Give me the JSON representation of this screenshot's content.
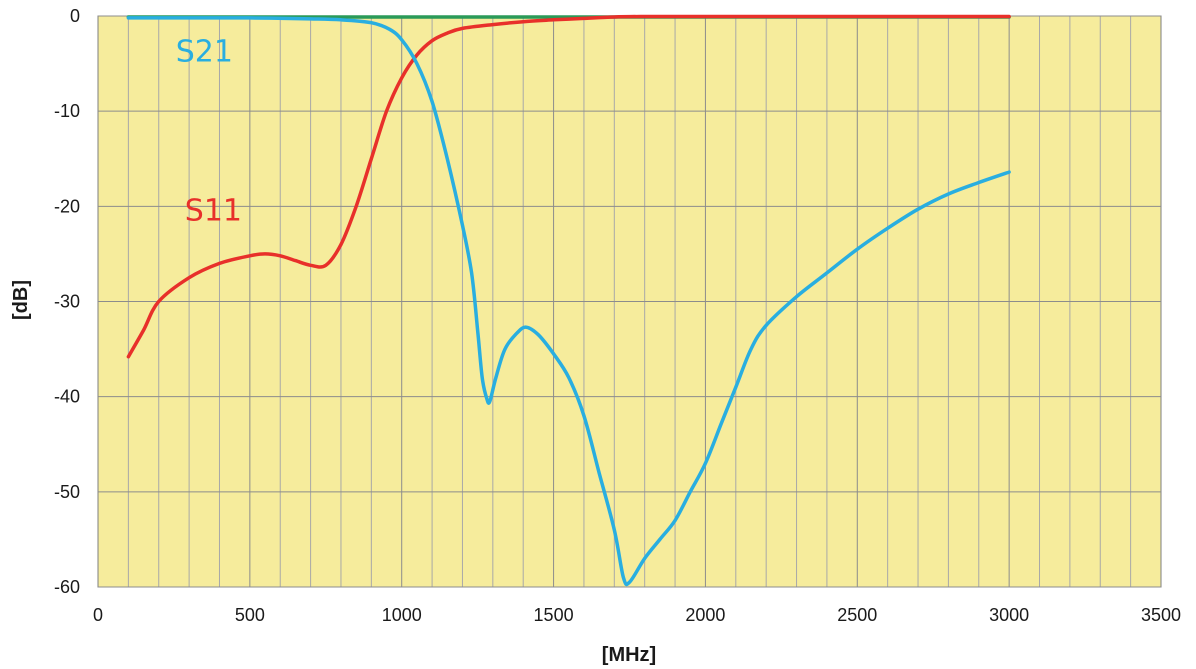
{
  "chart_data": {
    "type": "line",
    "title": "",
    "xlabel": "[MHz]",
    "ylabel": "[dB]",
    "xlim": [
      0,
      3500
    ],
    "ylim": [
      -60,
      0
    ],
    "x_ticks": [
      0,
      500,
      1000,
      1500,
      2000,
      2500,
      3000,
      3500
    ],
    "y_ticks": [
      0,
      -10,
      -20,
      -30,
      -40,
      -50,
      -60
    ],
    "minor_x_step": 100,
    "grid": true,
    "background_color": "#f6ec9c",
    "series": [
      {
        "name": "S21",
        "color": "#29aee0",
        "label_at": [
          350,
          -4.8
        ],
        "points": [
          [
            100,
            -0.2
          ],
          [
            300,
            -0.2
          ],
          [
            500,
            -0.2
          ],
          [
            700,
            -0.3
          ],
          [
            800,
            -0.4
          ],
          [
            900,
            -0.7
          ],
          [
            960,
            -1.4
          ],
          [
            1000,
            -2.5
          ],
          [
            1050,
            -5
          ],
          [
            1100,
            -9
          ],
          [
            1150,
            -15
          ],
          [
            1200,
            -22
          ],
          [
            1230,
            -27
          ],
          [
            1250,
            -33
          ],
          [
            1265,
            -38
          ],
          [
            1280,
            -40.2
          ],
          [
            1290,
            -40.5
          ],
          [
            1310,
            -38
          ],
          [
            1340,
            -35
          ],
          [
            1380,
            -33.3
          ],
          [
            1410,
            -32.7
          ],
          [
            1450,
            -33.5
          ],
          [
            1500,
            -35.5
          ],
          [
            1550,
            -38
          ],
          [
            1600,
            -42
          ],
          [
            1650,
            -48
          ],
          [
            1700,
            -54
          ],
          [
            1730,
            -59
          ],
          [
            1750,
            -59.5
          ],
          [
            1800,
            -57
          ],
          [
            1850,
            -55
          ],
          [
            1900,
            -53
          ],
          [
            1950,
            -50
          ],
          [
            2000,
            -47
          ],
          [
            2050,
            -43
          ],
          [
            2100,
            -39
          ],
          [
            2150,
            -35
          ],
          [
            2200,
            -32.5
          ],
          [
            2300,
            -29.5
          ],
          [
            2400,
            -27
          ],
          [
            2500,
            -24.5
          ],
          [
            2600,
            -22.3
          ],
          [
            2700,
            -20.3
          ],
          [
            2800,
            -18.7
          ],
          [
            2900,
            -17.5
          ],
          [
            3000,
            -16.4
          ]
        ]
      },
      {
        "name": "S11",
        "color": "#e8302a",
        "label_at": [
          380,
          -21.5
        ],
        "points": [
          [
            100,
            -35.8
          ],
          [
            150,
            -33
          ],
          [
            200,
            -30
          ],
          [
            300,
            -27.5
          ],
          [
            400,
            -26
          ],
          [
            500,
            -25.2
          ],
          [
            550,
            -25
          ],
          [
            600,
            -25.2
          ],
          [
            650,
            -25.7
          ],
          [
            700,
            -26.2
          ],
          [
            750,
            -26.2
          ],
          [
            800,
            -24
          ],
          [
            850,
            -20
          ],
          [
            900,
            -15
          ],
          [
            950,
            -10
          ],
          [
            1000,
            -6.5
          ],
          [
            1050,
            -4.1
          ],
          [
            1100,
            -2.6
          ],
          [
            1150,
            -1.8
          ],
          [
            1200,
            -1.3
          ],
          [
            1300,
            -0.9
          ],
          [
            1400,
            -0.6
          ],
          [
            1500,
            -0.4
          ],
          [
            1600,
            -0.25
          ],
          [
            1700,
            -0.1
          ],
          [
            1800,
            -0.05
          ],
          [
            2000,
            -0.05
          ],
          [
            2500,
            -0.05
          ],
          [
            3000,
            -0.05
          ]
        ]
      },
      {
        "color": "#2a9a58",
        "points": [
          [
            100,
            -0.1
          ],
          [
            1000,
            -0.1
          ],
          [
            2000,
            -0.1
          ],
          [
            3000,
            -0.1
          ]
        ]
      }
    ]
  }
}
